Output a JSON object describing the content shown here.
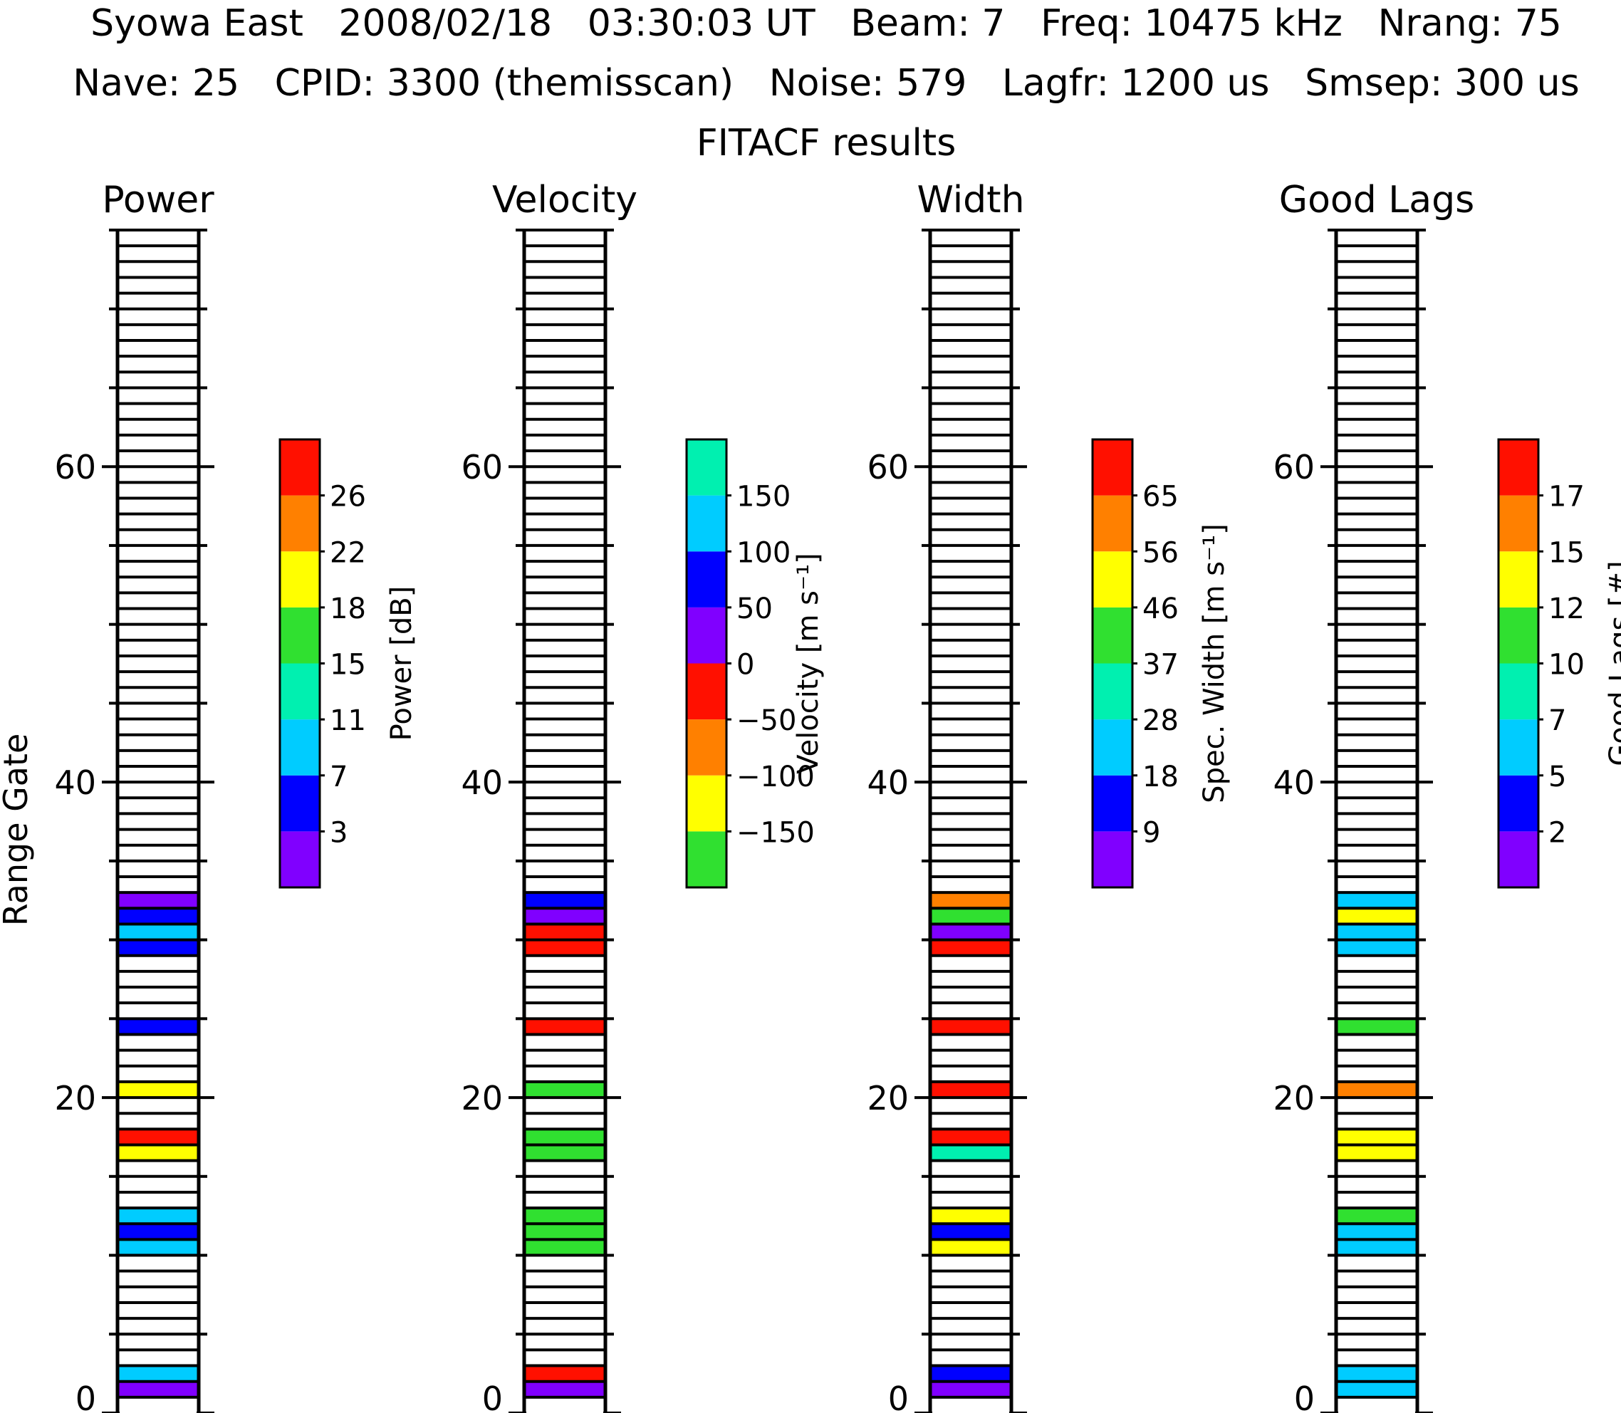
{
  "header": {
    "line1": "Syowa East   2008/02/18   03:30:03 UT   Beam: 7   Freq: 10475 kHz   Nrang: 75",
    "line2": "Nave: 25   CPID: 3300 (themisscan)   Noise: 579   Lagfr: 1200 us   Smsep: 300 us",
    "line3": "FITACF results"
  },
  "y_axis": {
    "label": "Range Gate",
    "ticks": [
      "0",
      "20",
      "40",
      "60"
    ]
  },
  "chart_data": [
    {
      "type": "heatmap",
      "title": "Power",
      "ylabel": "Range Gate",
      "ylim": [
        0,
        75
      ],
      "colorbar": {
        "label": "Power [dB]",
        "labels": [
          "3",
          "7",
          "11",
          "15",
          "18",
          "22",
          "26"
        ],
        "colors": [
          "#8000ff",
          "#0000ff",
          "#00ccff",
          "#00f0b0",
          "#30e030",
          "#ffff00",
          "#ff8000",
          "#ff1000"
        ]
      },
      "cells": [
        {
          "gate": 1,
          "color": "#8000ff"
        },
        {
          "gate": 2,
          "color": "#00ccff"
        },
        {
          "gate": 10,
          "color": "#00ccff"
        },
        {
          "gate": 11,
          "color": "#0000ff"
        },
        {
          "gate": 12,
          "color": "#00ccff"
        },
        {
          "gate": 16,
          "color": "#ffff00"
        },
        {
          "gate": 17,
          "color": "#ff1000"
        },
        {
          "gate": 20,
          "color": "#ffff00"
        },
        {
          "gate": 24,
          "color": "#0000ff"
        },
        {
          "gate": 29,
          "color": "#0000ff"
        },
        {
          "gate": 30,
          "color": "#00ccff"
        },
        {
          "gate": 31,
          "color": "#0000ff"
        },
        {
          "gate": 32,
          "color": "#8000ff"
        }
      ]
    },
    {
      "type": "heatmap",
      "title": "Velocity",
      "ylabel": "Range Gate",
      "ylim": [
        0,
        75
      ],
      "colorbar": {
        "label": "Velocity [m s⁻¹]",
        "labels": [
          "−150",
          "−100",
          "−50",
          "0",
          "50",
          "100",
          "150"
        ],
        "colors": [
          "#30e030",
          "#ffff00",
          "#ff8000",
          "#ff1000",
          "#8000ff",
          "#0000ff",
          "#00ccff",
          "#00f0b0"
        ]
      },
      "cells": [
        {
          "gate": 1,
          "color": "#8000ff"
        },
        {
          "gate": 2,
          "color": "#ff1000"
        },
        {
          "gate": 10,
          "color": "#30e030"
        },
        {
          "gate": 11,
          "color": "#30e030"
        },
        {
          "gate": 12,
          "color": "#30e030"
        },
        {
          "gate": 16,
          "color": "#30e030"
        },
        {
          "gate": 17,
          "color": "#30e030"
        },
        {
          "gate": 20,
          "color": "#30e030"
        },
        {
          "gate": 24,
          "color": "#ff1000"
        },
        {
          "gate": 29,
          "color": "#ff1000"
        },
        {
          "gate": 30,
          "color": "#ff1000"
        },
        {
          "gate": 31,
          "color": "#8000ff"
        },
        {
          "gate": 32,
          "color": "#0000ff"
        }
      ]
    },
    {
      "type": "heatmap",
      "title": "Width",
      "ylabel": "Range Gate",
      "ylim": [
        0,
        75
      ],
      "colorbar": {
        "label": "Spec. Width [m s⁻¹]",
        "labels": [
          "9",
          "18",
          "28",
          "37",
          "46",
          "56",
          "65"
        ],
        "colors": [
          "#8000ff",
          "#0000ff",
          "#00ccff",
          "#00f0b0",
          "#30e030",
          "#ffff00",
          "#ff8000",
          "#ff1000"
        ]
      },
      "cells": [
        {
          "gate": 1,
          "color": "#8000ff"
        },
        {
          "gate": 2,
          "color": "#0000ff"
        },
        {
          "gate": 10,
          "color": "#ffff00"
        },
        {
          "gate": 11,
          "color": "#0000ff"
        },
        {
          "gate": 12,
          "color": "#ffff00"
        },
        {
          "gate": 16,
          "color": "#00f0b0"
        },
        {
          "gate": 17,
          "color": "#ff1000"
        },
        {
          "gate": 20,
          "color": "#ff1000"
        },
        {
          "gate": 24,
          "color": "#ff1000"
        },
        {
          "gate": 29,
          "color": "#ff1000"
        },
        {
          "gate": 30,
          "color": "#8000ff"
        },
        {
          "gate": 31,
          "color": "#30e030"
        },
        {
          "gate": 32,
          "color": "#ff8000"
        }
      ]
    },
    {
      "type": "heatmap",
      "title": "Good Lags",
      "ylabel": "Range Gate",
      "ylim": [
        0,
        75
      ],
      "colorbar": {
        "label": "Good Lags [#]",
        "labels": [
          "2",
          "5",
          "7",
          "10",
          "12",
          "15",
          "17"
        ],
        "colors": [
          "#8000ff",
          "#0000ff",
          "#00ccff",
          "#00f0b0",
          "#30e030",
          "#ffff00",
          "#ff8000",
          "#ff1000"
        ]
      },
      "cells": [
        {
          "gate": 1,
          "color": "#00ccff"
        },
        {
          "gate": 2,
          "color": "#00ccff"
        },
        {
          "gate": 10,
          "color": "#00ccff"
        },
        {
          "gate": 11,
          "color": "#00ccff"
        },
        {
          "gate": 12,
          "color": "#30e030"
        },
        {
          "gate": 16,
          "color": "#ffff00"
        },
        {
          "gate": 17,
          "color": "#ffff00"
        },
        {
          "gate": 20,
          "color": "#ff8000"
        },
        {
          "gate": 24,
          "color": "#30e030"
        },
        {
          "gate": 29,
          "color": "#00ccff"
        },
        {
          "gate": 30,
          "color": "#00ccff"
        },
        {
          "gate": 31,
          "color": "#ffff00"
        },
        {
          "gate": 32,
          "color": "#00ccff"
        }
      ]
    }
  ]
}
